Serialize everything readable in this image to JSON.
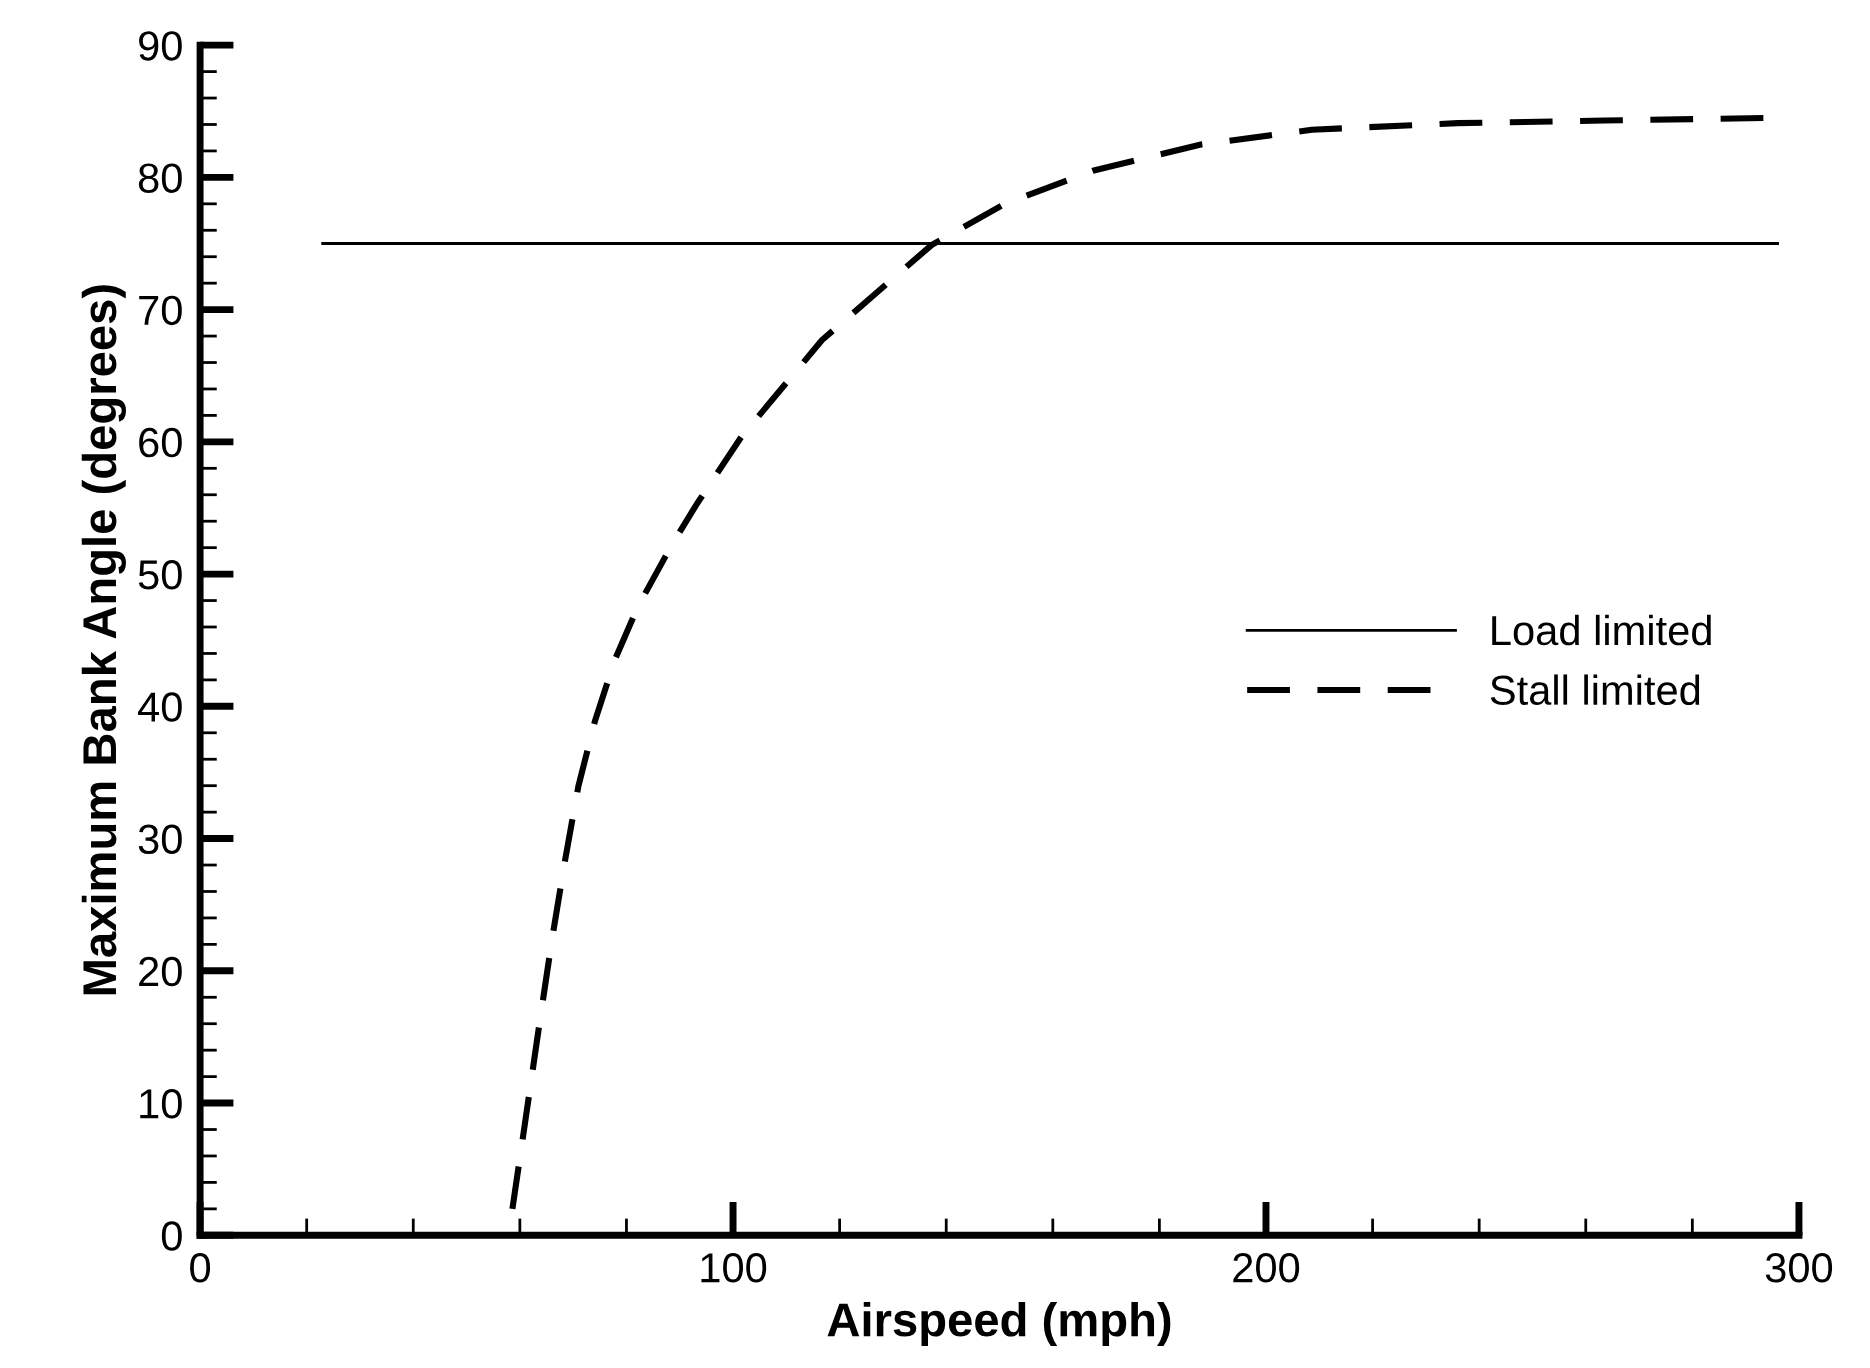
{
  "chart_data": {
    "type": "line",
    "xlabel": "Airspeed (mph)",
    "ylabel": "Maximum Bank Angle (degrees)",
    "xlim": [
      0,
      300
    ],
    "xticks": [
      0,
      100,
      200,
      300
    ],
    "ylim": [
      0,
      90
    ],
    "yticks": [
      0,
      10,
      20,
      30,
      40,
      50,
      60,
      70,
      80,
      90
    ],
    "grid": false,
    "legend": "center right",
    "marker": "none",
    "series": [
      {
        "name": "Load limited",
        "color": "#000000",
        "line_style": "solid",
        "x": [
          23,
          296
        ],
        "values": [
          75,
          75
        ]
      },
      {
        "name": "Stall limited",
        "color": "#000000",
        "line_style": "dashed",
        "x": [
          58.6,
          60.5,
          63.6,
          66.0,
          68.5,
          71.0,
          74.1,
          77.8,
          82.1,
          88.5,
          93.2,
          101.6,
          116.7,
          137.3,
          151,
          167.5,
          188,
          208.6,
          236,
          263.5,
          295
        ],
        "values": [
          2.0,
          7.2,
          15.8,
          22.3,
          28.4,
          34.0,
          38.9,
          43.5,
          47.5,
          52.2,
          55.3,
          60.4,
          67.7,
          74.9,
          78.0,
          80.5,
          82.5,
          83.6,
          84.1,
          84.3,
          84.5
        ]
      }
    ]
  }
}
